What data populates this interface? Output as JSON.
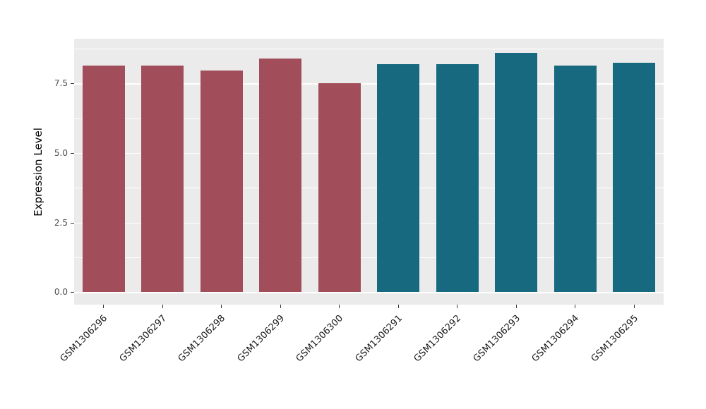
{
  "chart_data": {
    "type": "bar",
    "title": "",
    "xlabel": "",
    "ylabel": "Expression Level",
    "categories": [
      "GSM1306296",
      "GSM1306297",
      "GSM1306298",
      "GSM1306299",
      "GSM1306300",
      "GSM1306291",
      "GSM1306292",
      "GSM1306293",
      "GSM1306294",
      "GSM1306295"
    ],
    "values": [
      8.15,
      8.15,
      7.95,
      8.4,
      7.5,
      8.2,
      8.2,
      8.6,
      8.15,
      8.25
    ],
    "bar_colors": [
      "#A24D5A",
      "#A24D5A",
      "#A24D5A",
      "#A24D5A",
      "#A24D5A",
      "#16697F",
      "#16697F",
      "#16697F",
      "#16697F",
      "#16697F"
    ],
    "group_colors": {
      "left_group": "#A24D5A",
      "right_group": "#16697F"
    },
    "ylim": [
      0,
      9.1
    ],
    "yticks": [
      {
        "label": "0.0",
        "value": 0
      },
      {
        "label": "2.5",
        "value": 2.5
      },
      {
        "label": "5.0",
        "value": 5
      },
      {
        "label": "7.5",
        "value": 7.5
      }
    ],
    "minor_ticks": [
      1.25,
      3.75,
      6.25,
      8.75
    ],
    "panel_background": "#EBEBEB",
    "grid_color": "#FFFFFF",
    "legend": "none"
  }
}
